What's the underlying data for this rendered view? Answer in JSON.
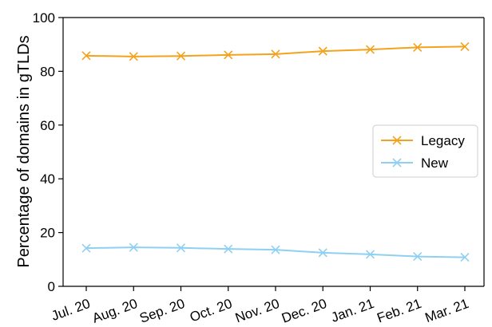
{
  "chart_data": {
    "type": "line",
    "title": "",
    "xlabel": "",
    "ylabel": "Percentage of domains in gTLDs",
    "categories": [
      "Jul. 20",
      "Aug. 20",
      "Sep. 20",
      "Oct. 20",
      "Nov. 20",
      "Dec. 20",
      "Jan. 21",
      "Feb. 21",
      "Mar. 21"
    ],
    "ylim": [
      0,
      100
    ],
    "yticks": [
      0,
      20,
      40,
      60,
      80,
      100
    ],
    "grid": false,
    "legend_position": "right",
    "series": [
      {
        "name": "Legacy",
        "color": "#F4A21D",
        "marker": "x",
        "values": [
          85.8,
          85.5,
          85.7,
          86.1,
          86.4,
          87.5,
          88.1,
          88.9,
          89.2
        ]
      },
      {
        "name": "New",
        "color": "#8FD0F2",
        "marker": "x",
        "values": [
          14.2,
          14.5,
          14.3,
          13.9,
          13.6,
          12.5,
          11.9,
          11.1,
          10.8
        ]
      }
    ]
  }
}
